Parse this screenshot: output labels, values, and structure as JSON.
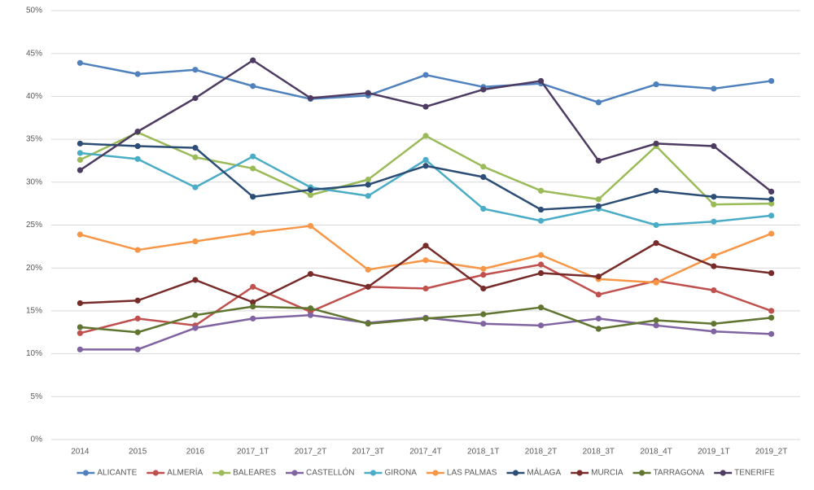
{
  "chart_data": {
    "type": "line",
    "categories": [
      "2014",
      "2015",
      "2016",
      "2017_1T",
      "2017_2T",
      "2017_3T",
      "2017_4T",
      "2018_1T",
      "2018_2T",
      "2018_3T",
      "2018_4T",
      "2019_1T",
      "2019_2T"
    ],
    "ylim": [
      0,
      50
    ],
    "yticks": [
      {
        "value": 0,
        "label": "0%"
      },
      {
        "value": 5,
        "label": "5%"
      },
      {
        "value": 10,
        "label": "10%"
      },
      {
        "value": 15,
        "label": "15%"
      },
      {
        "value": 20,
        "label": "20%"
      },
      {
        "value": 25,
        "label": "25%"
      },
      {
        "value": 30,
        "label": "30%"
      },
      {
        "value": 35,
        "label": "35%"
      },
      {
        "value": 40,
        "label": "40%"
      },
      {
        "value": 45,
        "label": "45%"
      },
      {
        "value": 50,
        "label": "50%"
      }
    ],
    "grid": true,
    "legend": "bottom",
    "series": [
      {
        "name": "ALICANTE",
        "color": "#4f81bd",
        "values": [
          43.9,
          42.6,
          43.1,
          41.2,
          39.7,
          40.1,
          42.5,
          41.1,
          41.5,
          39.3,
          41.4,
          40.9,
          41.8
        ]
      },
      {
        "name": "ALMERÍA",
        "color": "#c0504d",
        "values": [
          12.4,
          14.1,
          13.3,
          17.8,
          14.9,
          17.8,
          17.6,
          19.2,
          20.4,
          16.9,
          18.5,
          17.4,
          15.0
        ]
      },
      {
        "name": "BALEARES",
        "color": "#9bbb59",
        "values": [
          32.6,
          35.8,
          32.9,
          31.6,
          28.5,
          30.3,
          35.4,
          31.8,
          29.0,
          28.0,
          34.2,
          27.4,
          27.5
        ]
      },
      {
        "name": "CASTELLÓN",
        "color": "#8064a2",
        "values": [
          10.5,
          10.5,
          13.0,
          14.1,
          14.5,
          13.6,
          14.2,
          13.5,
          13.3,
          14.1,
          13.3,
          12.6,
          12.3
        ]
      },
      {
        "name": "GIRONA",
        "color": "#4bacc6",
        "values": [
          33.4,
          32.7,
          29.4,
          33.0,
          29.4,
          28.4,
          32.6,
          26.9,
          25.5,
          26.9,
          25.0,
          25.4,
          26.1
        ]
      },
      {
        "name": "LAS PALMAS",
        "color": "#f79646",
        "values": [
          23.9,
          22.1,
          23.1,
          24.1,
          24.9,
          19.8,
          20.9,
          19.9,
          21.5,
          18.7,
          18.3,
          21.4,
          24.0
        ]
      },
      {
        "name": "MÁLAGA",
        "color": "#2c4d75",
        "values": [
          34.5,
          34.2,
          34.0,
          28.3,
          29.1,
          29.7,
          31.9,
          30.6,
          26.8,
          27.2,
          29.0,
          28.3,
          28.0
        ]
      },
      {
        "name": "MURCIA",
        "color": "#772c2a",
        "values": [
          15.9,
          16.2,
          18.6,
          16.0,
          19.3,
          17.8,
          22.6,
          17.6,
          19.4,
          19.0,
          22.9,
          20.2,
          19.4
        ]
      },
      {
        "name": "TARRAGONA",
        "color": "#5f7530",
        "values": [
          13.1,
          12.5,
          14.5,
          15.5,
          15.3,
          13.5,
          14.1,
          14.6,
          15.4,
          12.9,
          13.9,
          13.5,
          14.2
        ]
      },
      {
        "name": "TENERIFE",
        "color": "#4d3b62",
        "values": [
          31.4,
          35.9,
          39.8,
          44.2,
          39.8,
          40.4,
          38.8,
          40.8,
          41.8,
          32.5,
          34.5,
          34.2,
          28.9
        ]
      }
    ]
  }
}
